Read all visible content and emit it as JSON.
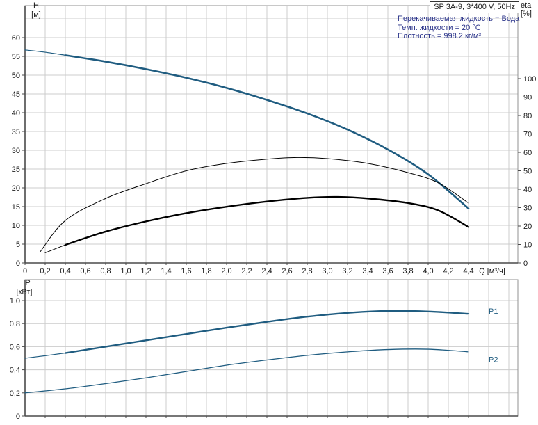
{
  "title_box": {
    "label": "SP 3A-9, 3*400 V, 50Hz"
  },
  "info": {
    "lines": [
      "Перекачиваемая жидкость = Вода",
      "Темп. жидкости = 20 °C",
      "Плотность = 998.2 кг/м³"
    ]
  },
  "colors": {
    "curve_blue": "#1f5c80",
    "curve_black": "#000000",
    "info_text": "#2a338a",
    "grid": "#cccccc",
    "frame": "#909090",
    "axis": "#4a4a4a",
    "tick_text": "#1a1a1a"
  },
  "chart_data": [
    {
      "type": "line",
      "name": "head-efficiency-chart",
      "xlabel": "Q [м³/ч]",
      "x_ticks": [
        {
          "v": 0,
          "label": "0"
        },
        {
          "v": 0.2,
          "label": "0,2"
        },
        {
          "v": 0.4,
          "label": "0,4"
        },
        {
          "v": 0.6,
          "label": "0,6"
        },
        {
          "v": 0.8,
          "label": "0,8"
        },
        {
          "v": 1.0,
          "label": "1,0"
        },
        {
          "v": 1.2,
          "label": "1,2"
        },
        {
          "v": 1.4,
          "label": "1,4"
        },
        {
          "v": 1.6,
          "label": "1,6"
        },
        {
          "v": 1.8,
          "label": "1,8"
        },
        {
          "v": 2.0,
          "label": "2,0"
        },
        {
          "v": 2.2,
          "label": "2,2"
        },
        {
          "v": 2.4,
          "label": "2,4"
        },
        {
          "v": 2.6,
          "label": "2,6"
        },
        {
          "v": 2.8,
          "label": "2,8"
        },
        {
          "v": 3.0,
          "label": "3,0"
        },
        {
          "v": 3.2,
          "label": "3,2"
        },
        {
          "v": 3.4,
          "label": "3,4"
        },
        {
          "v": 3.6,
          "label": "3,6"
        },
        {
          "v": 3.8,
          "label": "3,8"
        },
        {
          "v": 4.0,
          "label": "4,0"
        },
        {
          "v": 4.2,
          "label": "4,2"
        },
        {
          "v": 4.4,
          "label": "4,4"
        }
      ],
      "x_grid_extra": [
        4.6,
        4.8
      ],
      "x_range": [
        0,
        4.89
      ],
      "y_left": {
        "label_lines": [
          "H",
          "[м]"
        ],
        "range": [
          0,
          68.5
        ],
        "ticks": [
          {
            "v": 0,
            "label": "0"
          },
          {
            "v": 5,
            "label": "5"
          },
          {
            "v": 10,
            "label": "10"
          },
          {
            "v": 15,
            "label": "15"
          },
          {
            "v": 20,
            "label": "20"
          },
          {
            "v": 25,
            "label": "25"
          },
          {
            "v": 30,
            "label": "30"
          },
          {
            "v": 35,
            "label": "35"
          },
          {
            "v": 40,
            "label": "40"
          },
          {
            "v": 45,
            "label": "45"
          },
          {
            "v": 50,
            "label": "50"
          },
          {
            "v": 55,
            "label": "55"
          },
          {
            "v": 60,
            "label": "60"
          }
        ],
        "grid": [
          5,
          10,
          15,
          20,
          25,
          30,
          35,
          40,
          45,
          50,
          55,
          60,
          65
        ]
      },
      "y_right": {
        "label_lines": [
          "eta",
          "[%]"
        ],
        "range": [
          0,
          139
        ],
        "ticks": [
          {
            "v": 0,
            "label": "0"
          },
          {
            "v": 10,
            "label": "10"
          },
          {
            "v": 20,
            "label": "20"
          },
          {
            "v": 30,
            "label": "30"
          },
          {
            "v": 40,
            "label": "40"
          },
          {
            "v": 50,
            "label": "50"
          },
          {
            "v": 60,
            "label": "60"
          },
          {
            "v": 70,
            "label": "70"
          },
          {
            "v": 80,
            "label": "80"
          },
          {
            "v": 90,
            "label": "90"
          },
          {
            "v": 100,
            "label": "100"
          }
        ]
      },
      "series": [
        {
          "name": "head-curve-lead",
          "axis": "H",
          "color": "blue",
          "width": 1.2,
          "points": [
            [
              0,
              56.7
            ],
            [
              0.2,
              56.1
            ],
            [
              0.4,
              55.3
            ]
          ]
        },
        {
          "name": "head-curve",
          "axis": "H",
          "color": "blue",
          "width": 2.6,
          "points": [
            [
              0.4,
              55.3
            ],
            [
              0.8,
              53.6
            ],
            [
              1.2,
              51.6
            ],
            [
              1.6,
              49.3
            ],
            [
              2.0,
              46.6
            ],
            [
              2.4,
              43.4
            ],
            [
              2.8,
              39.8
            ],
            [
              3.2,
              35.5
            ],
            [
              3.6,
              30.2
            ],
            [
              4.0,
              23.6
            ],
            [
              4.4,
              14.5
            ]
          ]
        },
        {
          "name": "eta-curve",
          "axis": "eta",
          "color": "black",
          "width": 1,
          "points": [
            [
              0.15,
              6
            ],
            [
              0.4,
              23
            ],
            [
              0.8,
              35
            ],
            [
              1.2,
              43
            ],
            [
              1.6,
              50
            ],
            [
              2.0,
              54
            ],
            [
              2.4,
              56.3
            ],
            [
              2.7,
              57.2
            ],
            [
              3.0,
              56.6
            ],
            [
              3.4,
              54
            ],
            [
              3.8,
              49
            ],
            [
              4.1,
              43.5
            ],
            [
              4.4,
              32.5
            ]
          ]
        },
        {
          "name": "eta-total-lead",
          "axis": "eta",
          "color": "black",
          "width": 1,
          "points": [
            [
              0.2,
              5.5
            ],
            [
              0.4,
              9.8
            ]
          ]
        },
        {
          "name": "eta-total-curve",
          "axis": "eta",
          "color": "black",
          "width": 2.4,
          "points": [
            [
              0.4,
              9.8
            ],
            [
              0.8,
              17
            ],
            [
              1.2,
              22.5
            ],
            [
              1.6,
              27
            ],
            [
              2.0,
              30.5
            ],
            [
              2.4,
              33.3
            ],
            [
              2.8,
              35.3
            ],
            [
              3.1,
              35.8
            ],
            [
              3.4,
              35
            ],
            [
              3.8,
              32.5
            ],
            [
              4.1,
              28.5
            ],
            [
              4.4,
              19.5
            ]
          ]
        }
      ],
      "curve_labels": []
    },
    {
      "type": "line",
      "name": "power-chart",
      "xlabel": "",
      "x_ticks": [
        {
          "v": 0.2
        },
        {
          "v": 0.4
        },
        {
          "v": 0.6
        },
        {
          "v": 0.8
        },
        {
          "v": 1.0
        },
        {
          "v": 1.2
        },
        {
          "v": 1.4
        },
        {
          "v": 1.6
        },
        {
          "v": 1.8
        },
        {
          "v": 2.0
        },
        {
          "v": 2.2
        },
        {
          "v": 2.4
        },
        {
          "v": 2.6
        },
        {
          "v": 2.8
        },
        {
          "v": 3.0
        },
        {
          "v": 3.2
        },
        {
          "v": 3.4
        },
        {
          "v": 3.6
        },
        {
          "v": 3.8
        },
        {
          "v": 4.0
        },
        {
          "v": 4.2
        },
        {
          "v": 4.4
        }
      ],
      "x_grid_extra": [
        4.6,
        4.8
      ],
      "x_range": [
        0,
        4.89
      ],
      "y_left": {
        "label_lines": [
          "P",
          "[кВт]"
        ],
        "range": [
          0,
          1.18
        ],
        "ticks": [
          {
            "v": 0,
            "label": "0"
          },
          {
            "v": 0.2,
            "label": "0,2"
          },
          {
            "v": 0.4,
            "label": "0,4"
          },
          {
            "v": 0.6,
            "label": "0,6"
          },
          {
            "v": 0.8,
            "label": "0,8"
          },
          {
            "v": 1.0,
            "label": "1,0"
          }
        ],
        "grid": [
          0.2,
          0.4,
          0.6,
          0.8,
          1.0
        ]
      },
      "series": [
        {
          "name": "p1-curve-lead",
          "axis": "P",
          "color": "blue",
          "width": 1.2,
          "points": [
            [
              0,
              0.5
            ],
            [
              0.2,
              0.522
            ],
            [
              0.4,
              0.545
            ]
          ]
        },
        {
          "name": "p1-curve",
          "axis": "P",
          "color": "blue",
          "width": 2.4,
          "points": [
            [
              0.4,
              0.545
            ],
            [
              0.8,
              0.6
            ],
            [
              1.2,
              0.655
            ],
            [
              1.6,
              0.71
            ],
            [
              2.0,
              0.765
            ],
            [
              2.4,
              0.815
            ],
            [
              2.8,
              0.86
            ],
            [
              3.2,
              0.893
            ],
            [
              3.6,
              0.91
            ],
            [
              4.0,
              0.905
            ],
            [
              4.4,
              0.885
            ]
          ]
        },
        {
          "name": "p2-curve",
          "axis": "P",
          "color": "blue",
          "width": 1.3,
          "points": [
            [
              0,
              0.2
            ],
            [
              0.4,
              0.235
            ],
            [
              0.8,
              0.28
            ],
            [
              1.2,
              0.33
            ],
            [
              1.6,
              0.385
            ],
            [
              2.0,
              0.44
            ],
            [
              2.4,
              0.485
            ],
            [
              2.8,
              0.525
            ],
            [
              3.2,
              0.555
            ],
            [
              3.6,
              0.575
            ],
            [
              4.0,
              0.578
            ],
            [
              4.4,
              0.555
            ]
          ]
        }
      ],
      "curve_labels": [
        {
          "text": "P1",
          "q": 4.6,
          "v": 0.91
        },
        {
          "text": "P2",
          "q": 4.6,
          "v": 0.49
        }
      ]
    }
  ]
}
